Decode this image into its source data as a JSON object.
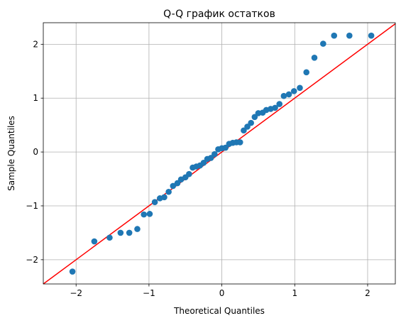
{
  "chart_data": {
    "type": "scatter",
    "title": "Q-Q график остатков",
    "xlabel": "Theoretical Quantiles",
    "ylabel": "Sample Quantiles",
    "xlim": [
      -2.45,
      2.38
    ],
    "ylim": [
      -2.45,
      2.4
    ],
    "xticks": [
      -2,
      -1,
      0,
      1,
      2
    ],
    "yticks": [
      -2,
      -1,
      0,
      1,
      2
    ],
    "xtick_labels": [
      "−2",
      "−1",
      "0",
      "1",
      "2"
    ],
    "ytick_labels": [
      "−2",
      "−1",
      "0",
      "1",
      "2"
    ],
    "grid": true,
    "marker_color": "#1f77b4",
    "reference_line": {
      "slope": 1,
      "intercept": 0,
      "color": "#ff0000"
    },
    "points": {
      "x": [
        -2.05,
        -1.75,
        -1.54,
        -1.39,
        -1.27,
        -1.16,
        -1.07,
        -0.99,
        -0.92,
        -0.85,
        -0.79,
        -0.73,
        -0.67,
        -0.61,
        -0.56,
        -0.5,
        -0.45,
        -0.4,
        -0.35,
        -0.3,
        -0.25,
        -0.2,
        -0.15,
        -0.1,
        -0.05,
        0.0,
        0.05,
        0.1,
        0.15,
        0.2,
        0.25,
        0.3,
        0.35,
        0.4,
        0.45,
        0.5,
        0.56,
        0.61,
        0.67,
        0.73,
        0.79,
        0.85,
        0.92,
        0.99,
        1.07,
        1.16,
        1.27,
        1.39,
        1.54,
        1.75,
        2.05
      ],
      "y": [
        -2.22,
        -1.66,
        -1.59,
        -1.5,
        -1.5,
        -1.43,
        -1.16,
        -1.15,
        -0.93,
        -0.86,
        -0.84,
        -0.74,
        -0.63,
        -0.58,
        -0.51,
        -0.47,
        -0.41,
        -0.29,
        -0.27,
        -0.25,
        -0.2,
        -0.13,
        -0.11,
        -0.04,
        0.05,
        0.07,
        0.08,
        0.15,
        0.17,
        0.18,
        0.18,
        0.4,
        0.47,
        0.54,
        0.65,
        0.72,
        0.73,
        0.78,
        0.8,
        0.82,
        0.89,
        1.04,
        1.07,
        1.13,
        1.19,
        1.48,
        1.75,
        2.01,
        2.16,
        2.16,
        2.16
      ]
    }
  }
}
